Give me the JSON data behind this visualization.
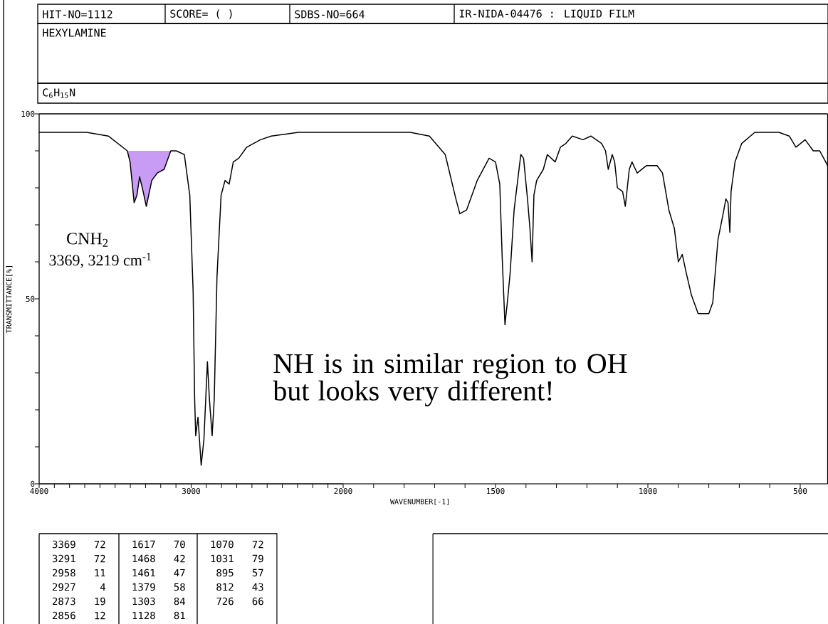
{
  "chart_data": [
    {
      "type": "line",
      "title": "HEXYLAMINE",
      "subtitle": "C$_{6}$H$_{15}$N",
      "ylabel": "TRANSMITTANCE[%]",
      "annotations": [
        "HIT-NO=1112",
        "SCORE= (   )",
        "SDBS-NO=664",
        "IR-NIDA-04476 : LIQUID FILM",
        "CNH$_{2}$",
        "3369, 3219 cm$^{-1}$",
        "NH is in similar region to OH but looks very different!",
        "3369",
        "72",
        "3291",
        "72",
        "2958",
        "11",
        "2927",
        "4",
        "2873",
        "19",
        "2856",
        "12",
        "1617",
        "70",
        "1468",
        "42",
        "1461",
        "47",
        "1379",
        "58",
        "1303",
        "84",
        "1128",
        "81",
        "1070",
        "72",
        "1031",
        "79",
        "895",
        "57",
        "812",
        "43",
        "726",
        "66"
      ],
      "xlim": [
        4000,
        2000
      ],
      "xticks": [
        4000,
        {
          "value": 3900,
          "label": null
        },
        {
          "value": 3800,
          "label": null
        },
        {
          "value": 3700,
          "label": null
        },
        {
          "value": 3600,
          "label": null
        },
        {
          "value": 3500,
          "label": null
        },
        {
          "value": 3400,
          "label": null
        },
        {
          "value": 3300,
          "label": null
        },
        {
          "value": 3200,
          "label": null
        },
        {
          "value": 3100,
          "label": null
        },
        3000,
        {
          "value": 2900,
          "label": null
        },
        {
          "value": 2800,
          "label": null
        },
        {
          "value": 2700,
          "label": null
        },
        {
          "value": 2600,
          "label": null
        },
        {
          "value": 2500,
          "label": null
        },
        {
          "value": 2400,
          "label": null
        },
        {
          "value": 2300,
          "label": null
        },
        {
          "value": 2200,
          "label": null
        },
        {
          "value": 2100,
          "label": null
        },
        2000
      ],
      "ylim": [
        0,
        100
      ],
      "yticks": [
        0,
        {
          "value": 10,
          "label": null
        },
        {
          "value": 20,
          "label": null
        },
        {
          "value": 30,
          "label": null
        },
        {
          "value": 40,
          "label": null
        },
        50,
        {
          "value": 60,
          "label": null
        },
        {
          "value": 70,
          "label": null
        },
        {
          "value": 80,
          "label": null
        },
        {
          "value": 90,
          "label": null
        },
        100
      ],
      "series": [
        {
          "type": "area",
          "color": "#c89bf5",
          "x": [
            3420,
            3402,
            3375,
            3357,
            3339,
            3316,
            3295,
            3259,
            3223,
            3178,
            3134
          ],
          "values": [
            90,
            87,
            76,
            78,
            83,
            79,
            75,
            82,
            84,
            85,
            90
          ]
        },
        {
          "color": "#000000",
          "x": [
            4000,
            3830,
            3687,
            3545,
            3420,
            3402,
            3375,
            3357,
            3339,
            3316,
            3295,
            3259,
            3223,
            3178,
            3134,
            3098,
            3045,
            3009,
            2987,
            2977,
            2970,
            2955,
            2934,
            2916,
            2893,
            2880,
            2862,
            2848,
            2830,
            2803,
            2777,
            2750,
            2723,
            2687,
            2634,
            2544,
            2473,
            2294,
            2098,
            2000
          ],
          "values": [
            95,
            95,
            95,
            94,
            90,
            87,
            76,
            78,
            83,
            79,
            75,
            82,
            84,
            85,
            90,
            90,
            89,
            78,
            52,
            23,
            13,
            18,
            5,
            12,
            33,
            23,
            13,
            23,
            56,
            78,
            82,
            81,
            87,
            88,
            91,
            93,
            94,
            95,
            95,
            95
          ]
        }
      ]
    },
    {
      "type": "line",
      "xlabel": "WAVENUMBER[-1]",
      "tick_labels": "x",
      "xlim": [
        2000,
        410
      ],
      "xticks": [
        {
          "value": 1900,
          "label": null
        },
        {
          "value": 1800,
          "label": null
        },
        {
          "value": 1700,
          "label": null
        },
        {
          "value": 1600,
          "label": null
        },
        1500,
        {
          "value": 1400,
          "label": null
        },
        {
          "value": 1300,
          "label": null
        },
        {
          "value": 1200,
          "label": null
        },
        {
          "value": 1100,
          "label": null
        },
        1000,
        {
          "value": 900,
          "label": null
        },
        {
          "value": 800,
          "label": null
        },
        {
          "value": 700,
          "label": null
        },
        {
          "value": 600,
          "label": null
        },
        500
      ],
      "ylim": [
        0,
        100
      ],
      "series": [
        {
          "color": "#000000",
          "x": [
            2000,
            1916,
            1780,
            1717,
            1665,
            1630,
            1617,
            1595,
            1560,
            1521,
            1500,
            1486,
            1478,
            1469,
            1460,
            1452,
            1439,
            1417,
            1408,
            1395,
            1387,
            1380,
            1374,
            1365,
            1343,
            1330,
            1304,
            1287,
            1269,
            1248,
            1213,
            1187,
            1152,
            1139,
            1130,
            1117,
            1109,
            1100,
            1083,
            1074,
            1061,
            1052,
            1035,
            1005,
            970,
            952,
            931,
            913,
            900,
            887,
            874,
            857,
            835,
            800,
            787,
            770,
            753,
            744,
            737,
            731,
            727,
            714,
            692,
            649,
            570,
            536,
            514,
            484,
            457,
            436,
            410
          ],
          "values": [
            95,
            95,
            95,
            94,
            89,
            77,
            73,
            74,
            82,
            88,
            87,
            81,
            61,
            43,
            50,
            57,
            74,
            89,
            88,
            77,
            69,
            60,
            78,
            82,
            85,
            89,
            87,
            91,
            92,
            94,
            93,
            94,
            92,
            90,
            85,
            89,
            87,
            80,
            79,
            75,
            85,
            87,
            84,
            86,
            86,
            84,
            74,
            69,
            60,
            62,
            57,
            51,
            46,
            46,
            49,
            66,
            73,
            77,
            76,
            68,
            79,
            87,
            92,
            95,
            95,
            94,
            91,
            93,
            90,
            90,
            86
          ]
        }
      ]
    }
  ]
}
